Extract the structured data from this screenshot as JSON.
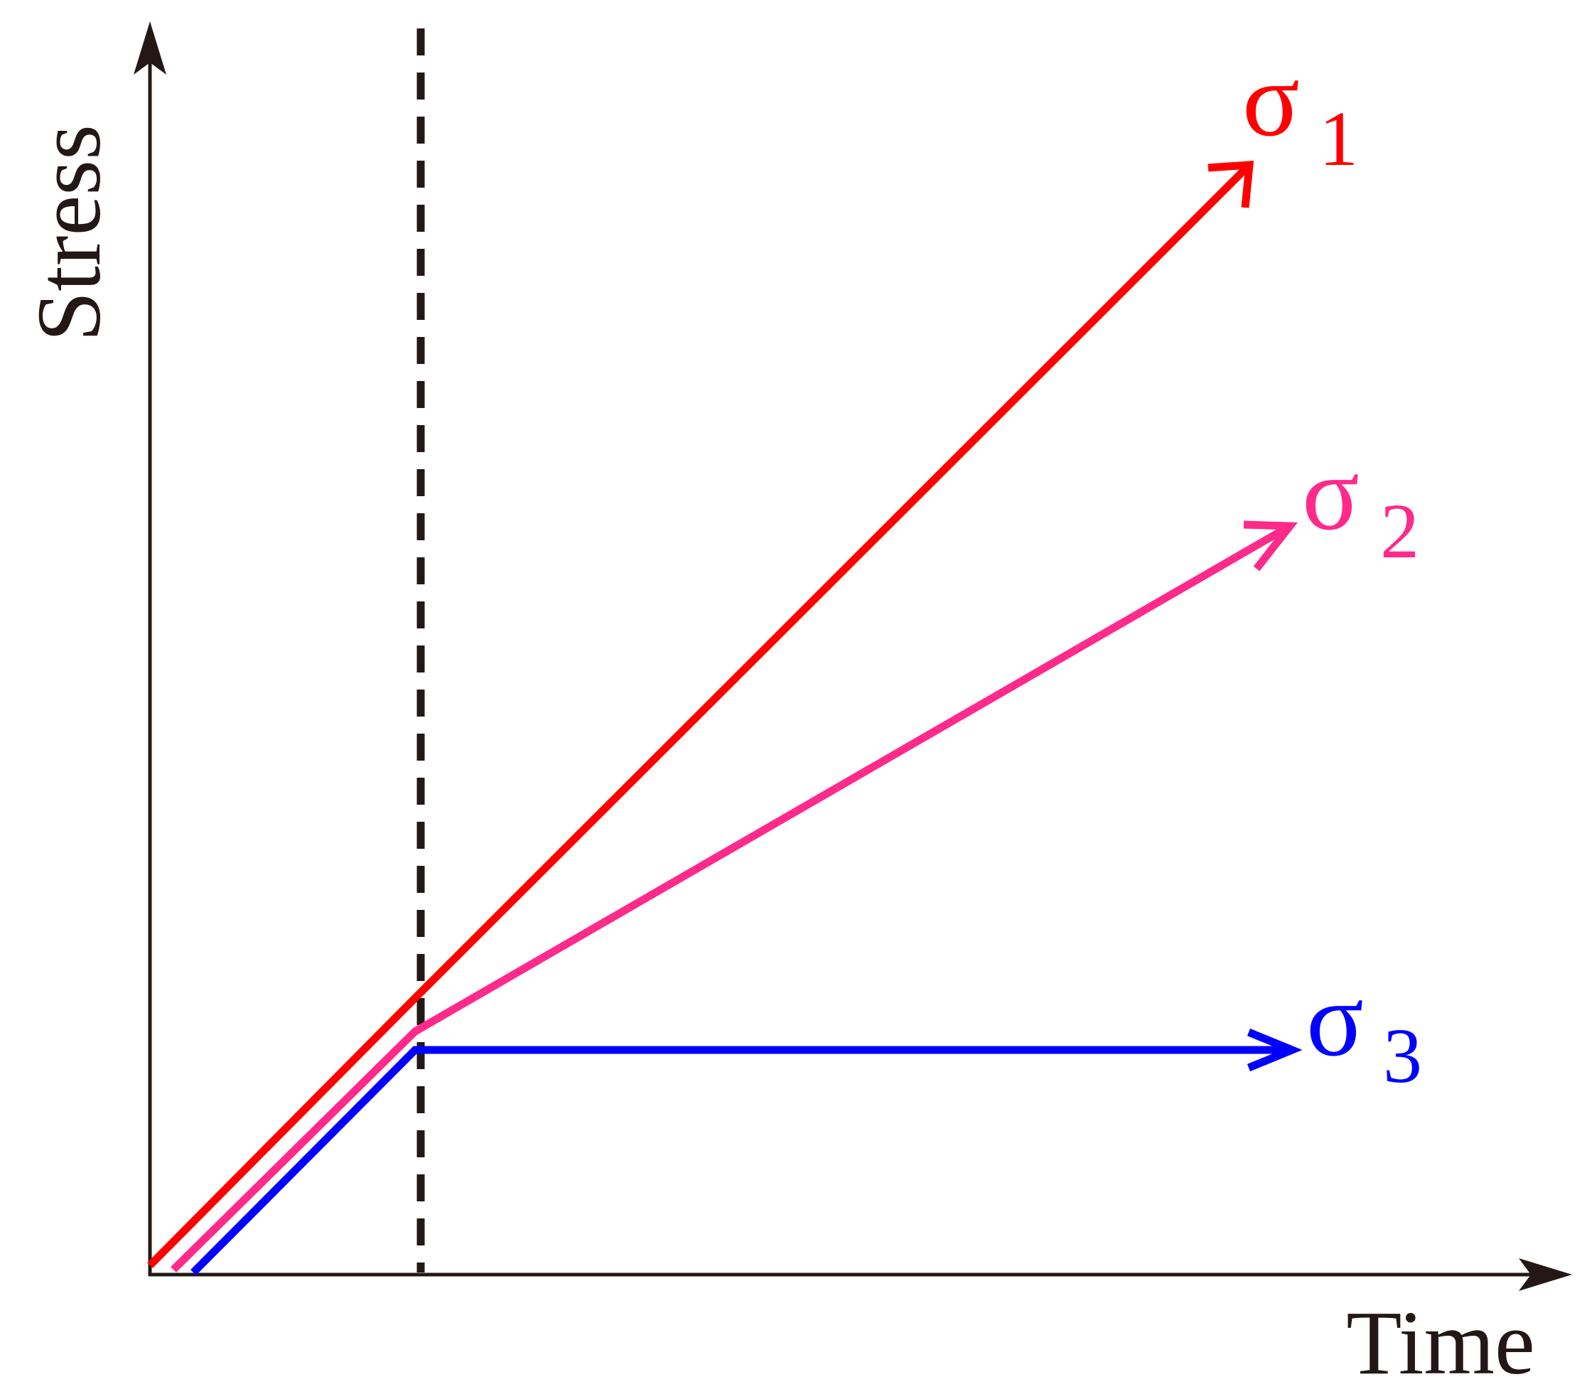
{
  "axes": {
    "y_label": "Stress",
    "x_label": "Time"
  },
  "curves": [
    {
      "symbol": "σ",
      "subscript": "1"
    },
    {
      "symbol": "σ",
      "subscript": "2"
    },
    {
      "symbol": "σ",
      "subscript": "3"
    }
  ]
}
